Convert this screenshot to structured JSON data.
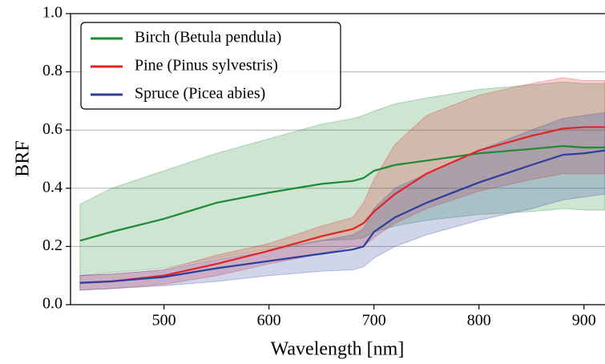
{
  "chart_data": {
    "type": "line-band",
    "xlabel": "Wavelength [nm]",
    "ylabel": "BRF",
    "x": [
      420,
      450,
      500,
      550,
      600,
      650,
      680,
      690,
      700,
      720,
      750,
      800,
      850,
      880,
      900,
      920
    ],
    "series": [
      {
        "name": "Birch (Betula pendula)",
        "color": "#1f8a34",
        "values": [
          0.22,
          0.25,
          0.295,
          0.35,
          0.385,
          0.415,
          0.425,
          0.435,
          0.46,
          0.48,
          0.495,
          0.52,
          0.535,
          0.545,
          0.54,
          0.54
        ],
        "upper": [
          0.345,
          0.4,
          0.46,
          0.52,
          0.57,
          0.62,
          0.64,
          0.65,
          0.665,
          0.69,
          0.71,
          0.74,
          0.755,
          0.765,
          0.76,
          0.76
        ],
        "lower": [
          0.1,
          0.11,
          0.125,
          0.16,
          0.19,
          0.22,
          0.225,
          0.23,
          0.25,
          0.27,
          0.29,
          0.31,
          0.32,
          0.33,
          0.325,
          0.325
        ]
      },
      {
        "name": "Pine (Pinus sylvestris)",
        "color": "#e02424",
        "values": [
          0.075,
          0.08,
          0.1,
          0.14,
          0.185,
          0.235,
          0.26,
          0.28,
          0.32,
          0.38,
          0.45,
          0.53,
          0.58,
          0.605,
          0.61,
          0.61
        ],
        "upper": [
          0.1,
          0.105,
          0.12,
          0.17,
          0.21,
          0.27,
          0.3,
          0.35,
          0.43,
          0.55,
          0.65,
          0.72,
          0.76,
          0.78,
          0.77,
          0.77
        ],
        "lower": [
          0.05,
          0.055,
          0.07,
          0.1,
          0.14,
          0.175,
          0.2,
          0.2,
          0.23,
          0.28,
          0.33,
          0.39,
          0.43,
          0.45,
          0.45,
          0.45
        ]
      },
      {
        "name": "Spruce (Picea abies)",
        "color": "#2b3f9e",
        "values": [
          0.075,
          0.08,
          0.095,
          0.125,
          0.15,
          0.175,
          0.19,
          0.2,
          0.25,
          0.3,
          0.35,
          0.42,
          0.48,
          0.515,
          0.52,
          0.53
        ],
        "upper": [
          0.1,
          0.105,
          0.12,
          0.155,
          0.185,
          0.22,
          0.24,
          0.26,
          0.33,
          0.4,
          0.45,
          0.53,
          0.6,
          0.64,
          0.65,
          0.66
        ],
        "lower": [
          0.05,
          0.055,
          0.065,
          0.08,
          0.1,
          0.115,
          0.12,
          0.13,
          0.16,
          0.2,
          0.24,
          0.29,
          0.33,
          0.36,
          0.37,
          0.38
        ]
      }
    ],
    "xlim": [
      411,
      920
    ],
    "ylim": [
      0,
      1
    ],
    "xticks": [
      500,
      600,
      700,
      800,
      900
    ],
    "yticks": [
      {
        "value": 0,
        "label": "0.0"
      },
      0.2,
      0.4,
      0.6,
      0.8,
      {
        "value": 1,
        "label": "1.0"
      }
    ],
    "grid": true,
    "legend": "upper-left"
  }
}
